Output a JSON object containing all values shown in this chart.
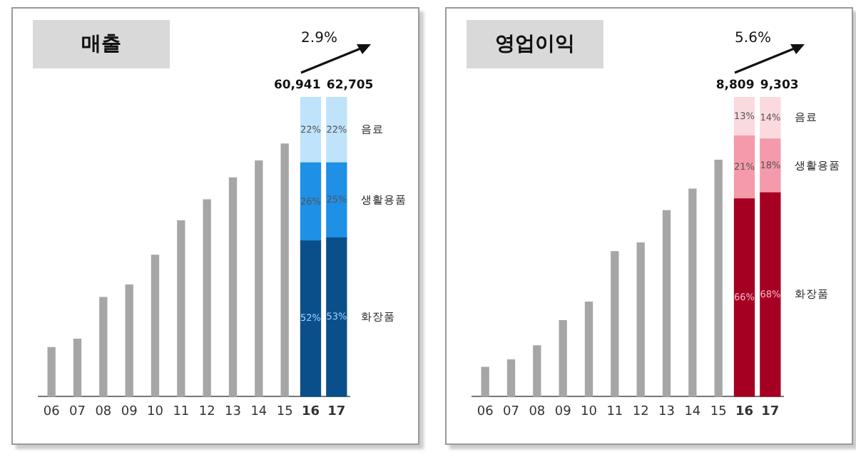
{
  "chart_data": [
    {
      "type": "bar",
      "title": "매출",
      "stacked": true,
      "tick_labels": "x",
      "categories": [
        "06",
        "07",
        "08",
        "09",
        "10",
        "11",
        "12",
        "13",
        "14",
        "15",
        "16",
        "17"
      ],
      "series": [
        {
          "color": "#a6a6a6",
          "values": [
            16.4,
            19.2,
            33.1,
            37.3,
            47.2,
            58.7,
            65.7,
            73.0,
            78.7,
            84.3,
            null,
            null
          ]
        },
        {
          "name": "화장품",
          "color": "#0b4f8a",
          "values": [
            null,
            null,
            null,
            null,
            null,
            null,
            null,
            null,
            null,
            null,
            52,
            53
          ],
          "value_labels": [
            null,
            null,
            null,
            null,
            null,
            null,
            null,
            null,
            null,
            null,
            "52%",
            "53%"
          ]
        },
        {
          "name": "생활용품",
          "color": "#1e90e6",
          "values": [
            null,
            null,
            null,
            null,
            null,
            null,
            null,
            null,
            null,
            null,
            26,
            25
          ],
          "value_labels": [
            null,
            null,
            null,
            null,
            null,
            null,
            null,
            null,
            null,
            null,
            "26%",
            "25%"
          ]
        },
        {
          "name": "음료",
          "color": "#bfe3fb",
          "values": [
            null,
            null,
            null,
            null,
            null,
            null,
            null,
            null,
            null,
            null,
            22,
            22
          ],
          "value_labels": [
            null,
            null,
            null,
            null,
            null,
            null,
            null,
            null,
            null,
            null,
            "22%",
            "22%"
          ]
        }
      ],
      "annotations": [
        "2.9%",
        {
          "text": "60,941",
          "x": "16",
          "y": 100
        },
        {
          "text": "62,705",
          "x": "17",
          "y": 100
        }
      ]
    },
    {
      "type": "bar",
      "title": "영업이익",
      "stacked": true,
      "tick_labels": "x",
      "categories": [
        "06",
        "07",
        "08",
        "09",
        "10",
        "11",
        "12",
        "13",
        "14",
        "15",
        "16",
        "17"
      ],
      "series": [
        {
          "color": "#a6a6a6",
          "values": [
            9.8,
            12.3,
            17.0,
            25.4,
            31.6,
            48.4,
            51.3,
            62.1,
            69.3,
            78.9,
            null,
            null
          ]
        },
        {
          "name": "화장품",
          "color": "#a50021",
          "values": [
            null,
            null,
            null,
            null,
            null,
            null,
            null,
            null,
            null,
            null,
            66,
            68
          ],
          "value_labels": [
            null,
            null,
            null,
            null,
            null,
            null,
            null,
            null,
            null,
            null,
            "66%",
            "68%"
          ]
        },
        {
          "name": "생활용품",
          "color": "#f49aaa",
          "values": [
            null,
            null,
            null,
            null,
            null,
            null,
            null,
            null,
            null,
            null,
            21,
            18
          ],
          "value_labels": [
            null,
            null,
            null,
            null,
            null,
            null,
            null,
            null,
            null,
            null,
            "21%",
            "18%"
          ]
        },
        {
          "name": "음료",
          "color": "#fbdadf",
          "values": [
            null,
            null,
            null,
            null,
            null,
            null,
            null,
            null,
            null,
            null,
            13,
            14
          ],
          "value_labels": [
            null,
            null,
            null,
            null,
            null,
            null,
            null,
            null,
            null,
            null,
            "13%",
            "14%"
          ]
        }
      ],
      "annotations": [
        "5.6%",
        {
          "text": "8,809",
          "x": "16",
          "y": 100
        },
        {
          "text": "9,303",
          "x": "17",
          "y": 100
        }
      ]
    }
  ]
}
